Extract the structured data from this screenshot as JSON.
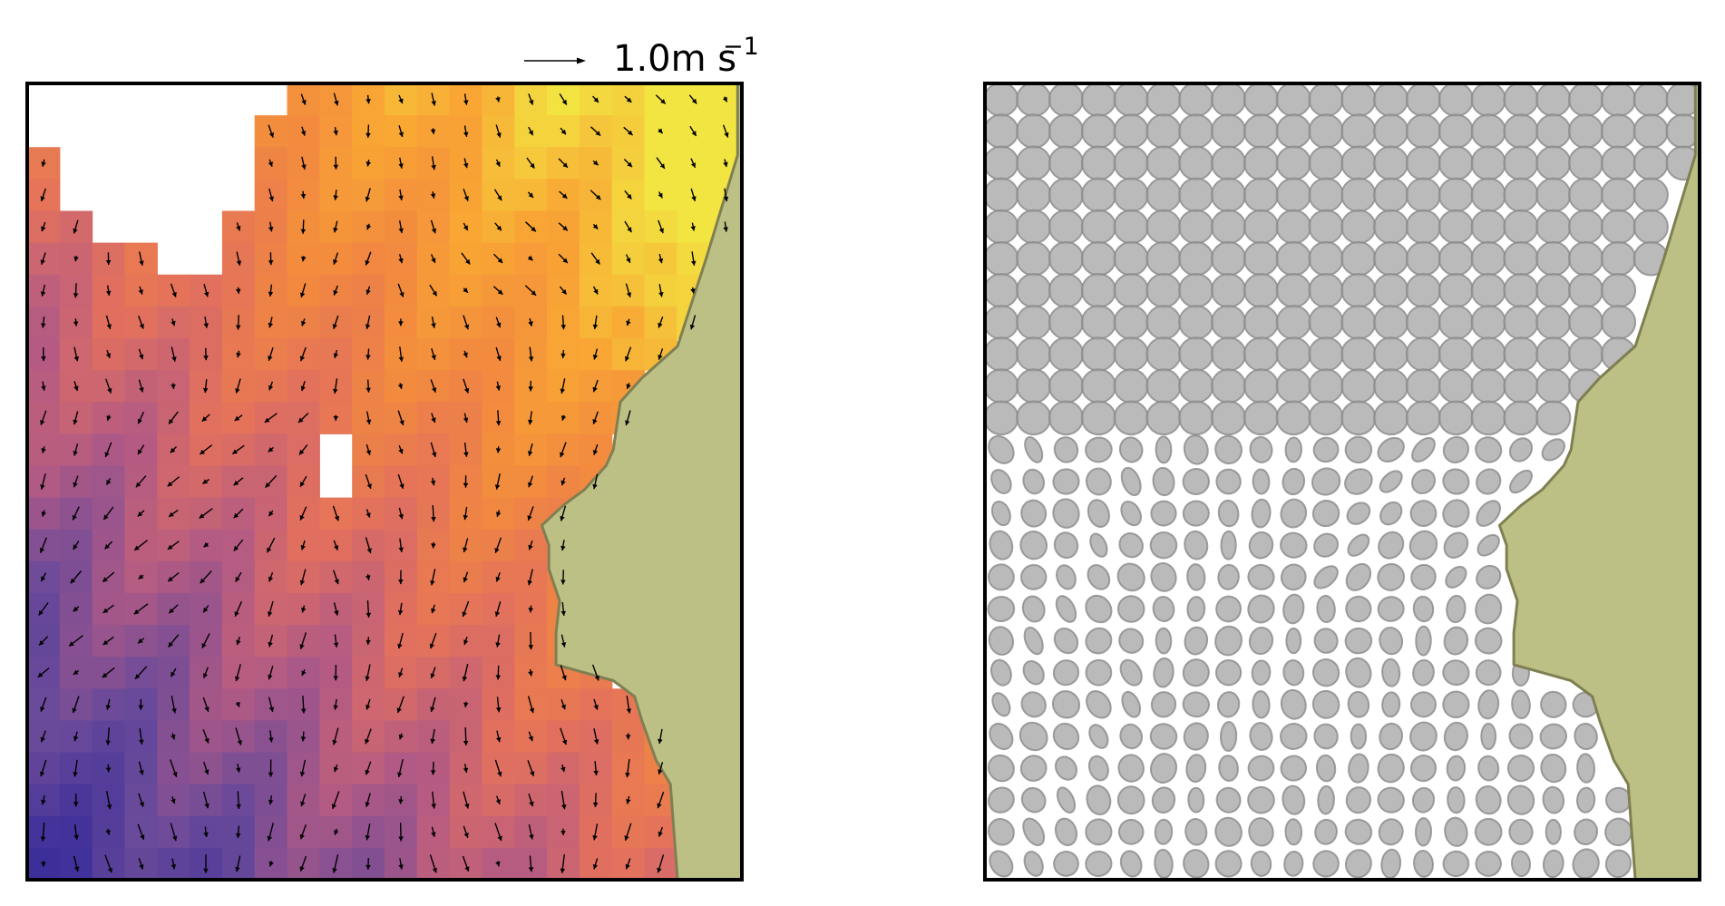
{
  "figure": {
    "quiver_key": {
      "label": "1.0m s",
      "exponent": "−1",
      "reference_speed": 1.0
    }
  },
  "colors": {
    "land_fill": "#bdc085",
    "coast_stroke": "#7f7f52",
    "ellipse_fill": "#a9a9a9",
    "ellipse_stroke": "#8a8a8a",
    "axes_frame": "#000000",
    "colormap": [
      "#3d2f9a",
      "#6a4a9a",
      "#b25a85",
      "#e2705e",
      "#f2893f",
      "#f9a734",
      "#f2e441"
    ]
  },
  "chart_data": [
    {
      "type": "heatmap",
      "subtype": "vector-field",
      "title": "",
      "xlabel": "",
      "ylabel": "",
      "grid": false,
      "colormap": "plasma",
      "field_grid": {
        "columns": 22,
        "rows": 25
      },
      "value_range": [
        0,
        1
      ],
      "quiver_key_speed": 1.0,
      "overlays": [
        "land-polygon",
        "masked-no-data-cells",
        "velocity-arrows"
      ]
    },
    {
      "type": "scatter",
      "subtype": "tidal-ellipse-field",
      "title": "",
      "xlabel": "",
      "ylabel": "",
      "grid": false,
      "ellipse_grid": {
        "columns": 22,
        "rows": 25
      },
      "overlays": [
        "land-polygon",
        "ellipses"
      ]
    }
  ]
}
